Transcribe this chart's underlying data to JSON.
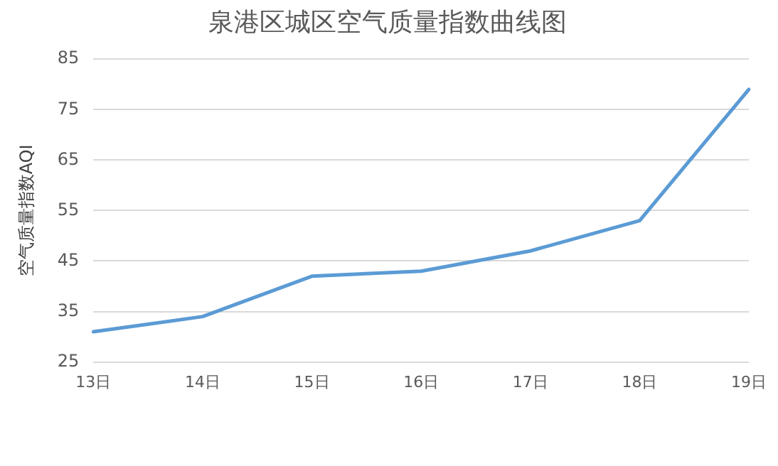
{
  "chart_data": {
    "type": "line",
    "title": "泉港区城区空气质量指数曲线图",
    "ylabel": "空气质量指数AQI",
    "categories": [
      "13日",
      "14日",
      "15日",
      "16日",
      "17日",
      "18日",
      "19日"
    ],
    "series": [
      {
        "color": "#5b9bd5",
        "values": [
          31,
          34,
          42,
          43,
          47,
          53,
          79
        ]
      }
    ],
    "ylim": [
      25,
      85
    ],
    "yticks": [
      25,
      35,
      45,
      55,
      65,
      75,
      85
    ],
    "grid": "y",
    "legend": false,
    "marker": "none",
    "line_style": "solid"
  }
}
